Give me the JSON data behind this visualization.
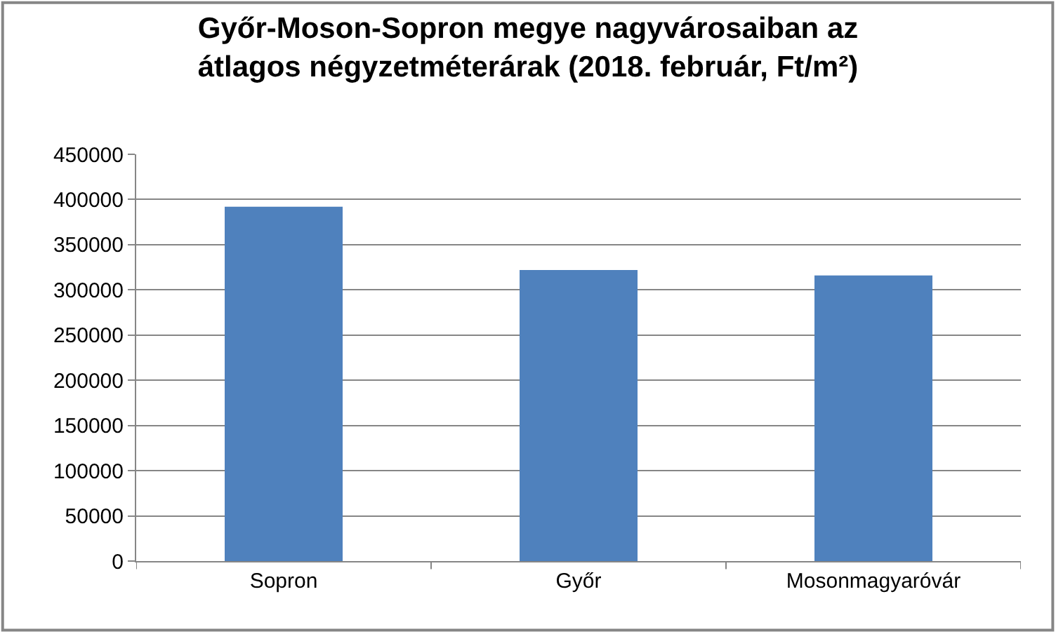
{
  "chart_data": {
    "type": "bar",
    "title": "Győr-Moson-Sopron megye nagyvárosaiban az\nátlagos négyzetméterárak (2018. február, Ft/m²)",
    "categories": [
      "Sopron",
      "Győr",
      "Mosonmagyaróvár"
    ],
    "values": [
      392000,
      322000,
      316000
    ],
    "color": "#4f81bd",
    "ylim": [
      0,
      450000
    ],
    "yticks": [
      0,
      50000,
      100000,
      150000,
      200000,
      250000,
      300000,
      350000,
      400000,
      450000
    ],
    "grid": "y"
  }
}
